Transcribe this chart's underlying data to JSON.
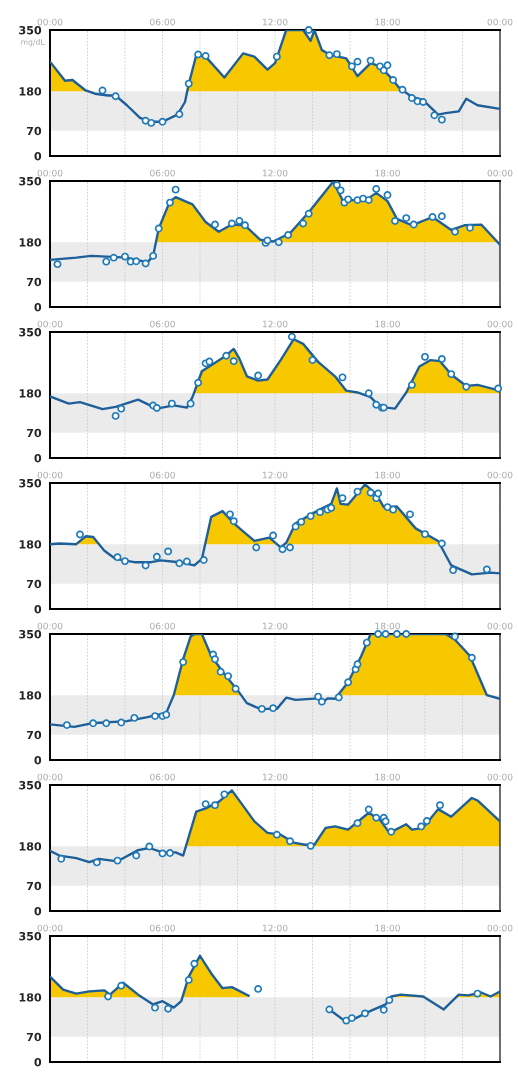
{
  "chart_data": [
    {
      "type": "line",
      "ylabel": "mg/dL",
      "xlim": [
        0,
        24
      ],
      "ylim": [
        0,
        350
      ],
      "yticks": [
        0,
        70,
        180,
        350
      ],
      "grid": "x",
      "xticks": [
        {
          "value": 0,
          "label": "00:00"
        },
        {
          "value": 2,
          "label": null
        },
        {
          "value": 4,
          "label": null
        },
        {
          "value": 6,
          "label": "06:00"
        },
        {
          "value": 8,
          "label": null
        },
        {
          "value": 10,
          "label": null
        },
        {
          "value": 12,
          "label": "12:00"
        },
        {
          "value": 14,
          "label": null
        },
        {
          "value": 16,
          "label": null
        },
        {
          "value": 18,
          "label": "18:00"
        },
        {
          "value": 20,
          "label": null
        },
        {
          "value": 22,
          "label": null
        },
        {
          "value": 24,
          "label": "00:00"
        }
      ],
      "bands": [
        {
          "axis": "y",
          "from": 70,
          "to": 180,
          "color": "#ebebeb"
        }
      ],
      "series": [
        {
          "type": "area",
          "color": "#f7c800",
          "x": [
            0,
            0.8,
            1.2,
            1.9,
            2.0,
            5,
            7.3,
            7.4,
            7.8,
            8.3,
            9.3,
            10.3,
            10.9,
            11.6,
            12.0,
            12.6,
            13.5,
            13.9,
            14.1,
            14.5,
            15.0,
            15.8,
            16.4,
            17.1,
            17.6,
            18.1,
            18.6,
            18.9
          ],
          "values": [
            262,
            209,
            211,
            182,
            180,
            null,
            180,
            200,
            280,
            276,
            218,
            285,
            276,
            240,
            258,
            350,
            350,
            320,
            350,
            294,
            280,
            271,
            222,
            258,
            249,
            222,
            191,
            180
          ]
        },
        {
          "color": "#1f5f99",
          "marker": "none",
          "line_style": "solid",
          "x": [
            0,
            0.8,
            1.2,
            1.9,
            2.4,
            3.1,
            3.5,
            4.1,
            4.8,
            5.4,
            6.0,
            6.8,
            7.2,
            7.4,
            7.8,
            8.3,
            9.3,
            10.3,
            10.9,
            11.6,
            12.0,
            12.6,
            13.5,
            13.9,
            14.1,
            14.5,
            15.0,
            15.8,
            16.4,
            17.1,
            17.6,
            18.1,
            18.6,
            19.3,
            19.9,
            20.7,
            21.1,
            21.8,
            22.2,
            22.8,
            24
          ],
          "values": [
            262,
            209,
            211,
            182,
            173,
            168,
            168,
            141,
            106,
            95,
            95,
            115,
            150,
            200,
            280,
            276,
            218,
            285,
            276,
            240,
            258,
            350,
            350,
            320,
            350,
            294,
            280,
            271,
            222,
            258,
            249,
            222,
            191,
            164,
            155,
            115,
            119,
            124,
            159,
            141,
            131
          ]
        },
        {
          "type": "scatter",
          "color": "#1f7ab8",
          "marker": "circle",
          "x": [
            2.8,
            3.5,
            5.1,
            5.4,
            6.0,
            6.9,
            7.4,
            7.9,
            8.3,
            12.1,
            13.8,
            14.9,
            15.3,
            16.1,
            16.4,
            17.1,
            17.6,
            17.8,
            18.0,
            18.3,
            18.8,
            19.3,
            19.6,
            19.9,
            20.5,
            20.9
          ],
          "values": [
            182,
            166,
            98,
            92,
            95,
            116,
            201,
            282,
            278,
            276,
            350,
            280,
            283,
            249,
            262,
            265,
            249,
            238,
            252,
            211,
            184,
            161,
            152,
            150,
            113,
            101
          ]
        }
      ]
    },
    {
      "type": "line",
      "xlim": [
        0,
        24
      ],
      "ylim": [
        0,
        350
      ],
      "yticks": [
        0,
        70,
        180,
        350
      ],
      "grid": "x",
      "xticks": [
        {
          "value": 0,
          "label": "00:00"
        },
        {
          "value": 2,
          "label": null
        },
        {
          "value": 4,
          "label": null
        },
        {
          "value": 6,
          "label": "06:00"
        },
        {
          "value": 8,
          "label": null
        },
        {
          "value": 10,
          "label": null
        },
        {
          "value": 12,
          "label": "12:00"
        },
        {
          "value": 14,
          "label": null
        },
        {
          "value": 16,
          "label": null
        },
        {
          "value": 18,
          "label": "18:00"
        },
        {
          "value": 20,
          "label": null
        },
        {
          "value": 22,
          "label": null
        },
        {
          "value": 24,
          "label": "00:00"
        }
      ],
      "bands": [
        {
          "axis": "y",
          "from": 70,
          "to": 180,
          "color": "#ebebeb"
        }
      ],
      "series": [
        {
          "type": "area",
          "color": "#f7c800",
          "x": [
            5.7,
            5.8,
            6.4,
            6.7,
            7.6,
            8.3,
            9.0,
            9.7,
            10.4,
            11.2,
            11.9,
            12.8,
            13.8,
            15.1,
            15.6,
            16.1,
            16.9,
            17.4,
            18.0,
            18.5,
            19.3,
            20.4,
            21.4,
            22.1,
            23.0,
            23.9
          ],
          "values": [
            180,
            218,
            294,
            305,
            285,
            236,
            209,
            229,
            227,
            187,
            182,
            205,
            263,
            348,
            297,
            297,
            299,
            317,
            294,
            245,
            227,
            250,
            214,
            227,
            229,
            180
          ]
        },
        {
          "color": "#1f5f99",
          "marker": "none",
          "line_style": "solid",
          "x": [
            0,
            1.4,
            2.2,
            4.1,
            5.2,
            5.5,
            5.8,
            6.4,
            6.7,
            7.6,
            8.3,
            9.0,
            9.7,
            10.4,
            11.2,
            11.9,
            12.8,
            13.8,
            15.1,
            15.6,
            16.1,
            16.9,
            17.4,
            18.0,
            18.5,
            19.3,
            20.4,
            21.4,
            22.1,
            23.0,
            24
          ],
          "values": [
            131,
            137,
            142,
            137,
            124,
            142,
            218,
            294,
            305,
            285,
            236,
            209,
            229,
            227,
            187,
            182,
            205,
            263,
            348,
            297,
            297,
            299,
            317,
            294,
            245,
            227,
            250,
            214,
            227,
            229,
            173
          ]
        },
        {
          "type": "scatter",
          "color": "#1f7ab8",
          "marker": "circle",
          "x": [
            0.4,
            3.0,
            3.4,
            4.0,
            4.3,
            4.6,
            5.1,
            5.5,
            5.8,
            6.4,
            6.7,
            8.8,
            9.7,
            10.1,
            10.4,
            11.5,
            11.6,
            12.2,
            12.7,
            13.5,
            13.8,
            15.3,
            15.5,
            15.7,
            15.9,
            16.4,
            16.7,
            17.0,
            17.4,
            18.0,
            18.4,
            19.0,
            19.4,
            20.4,
            20.9,
            21.6,
            22.4
          ],
          "values": [
            119,
            126,
            137,
            140,
            126,
            127,
            121,
            142,
            218,
            290,
            326,
            229,
            232,
            239,
            227,
            178,
            185,
            180,
            200,
            232,
            259,
            339,
            324,
            290,
            299,
            297,
            301,
            297,
            328,
            311,
            239,
            247,
            229,
            250,
            252,
            209,
            220
          ]
        }
      ]
    },
    {
      "type": "line",
      "xlim": [
        0,
        24
      ],
      "ylim": [
        0,
        350
      ],
      "yticks": [
        0,
        70,
        180,
        350
      ],
      "grid": "x",
      "xticks": [
        {
          "value": 0,
          "label": "00:00"
        },
        {
          "value": 2,
          "label": null
        },
        {
          "value": 4,
          "label": null
        },
        {
          "value": 6,
          "label": "06:00"
        },
        {
          "value": 8,
          "label": null
        },
        {
          "value": 10,
          "label": null
        },
        {
          "value": 12,
          "label": "12:00"
        },
        {
          "value": 14,
          "label": null
        },
        {
          "value": 16,
          "label": null
        },
        {
          "value": 18,
          "label": "18:00"
        },
        {
          "value": 20,
          "label": null
        },
        {
          "value": 22,
          "label": null
        },
        {
          "value": 24,
          "label": "00:00"
        }
      ],
      "bands": [
        {
          "axis": "y",
          "from": 70,
          "to": 180,
          "color": "#ebebeb"
        }
      ],
      "series": [
        {
          "type": "area",
          "color": "#f7c800",
          "x": [
            7.7,
            8.1,
            9.3,
            9.8,
            10.1,
            10.5,
            11.1,
            11.6,
            12.3,
            13.0,
            13.5,
            14.3,
            15.2,
            15.8,
            16.4,
            16.5,
            17.5,
            18.9,
            19.0,
            19.7,
            20.3,
            20.8,
            21.4,
            22.2,
            22.8,
            24
          ],
          "values": [
            180,
            241,
            281,
            303,
            276,
            227,
            215,
            218,
            272,
            330,
            317,
            267,
            227,
            187,
            182,
            180,
            null,
            180,
            182,
            254,
            272,
            269,
            232,
            200,
            203,
            187
          ]
        },
        {
          "color": "#1f5f99",
          "marker": "none",
          "line_style": "solid",
          "x": [
            0,
            1.0,
            1.6,
            2.8,
            3.5,
            4.7,
            5.7,
            6.6,
            7.3,
            7.6,
            8.1,
            9.3,
            9.8,
            10.1,
            10.5,
            11.1,
            11.6,
            12.3,
            13.0,
            13.5,
            14.3,
            15.2,
            15.8,
            16.4,
            17.1,
            17.6,
            18.4,
            19.0,
            19.7,
            20.3,
            20.8,
            21.4,
            22.2,
            22.8,
            24
          ],
          "values": [
            171,
            151,
            155,
            136,
            142,
            162,
            137,
            146,
            140,
            169,
            241,
            281,
            303,
            276,
            227,
            215,
            218,
            272,
            330,
            317,
            267,
            227,
            187,
            182,
            169,
            142,
            137,
            182,
            254,
            272,
            269,
            232,
            200,
            203,
            187
          ]
        },
        {
          "type": "scatter",
          "color": "#1f7ab8",
          "marker": "circle",
          "x": [
            3.5,
            3.8,
            5.5,
            5.7,
            6.5,
            7.5,
            7.9,
            8.3,
            8.5,
            9.4,
            9.8,
            11.1,
            12.9,
            14.0,
            15.6,
            17.0,
            17.4,
            17.7,
            17.8,
            19.3,
            20.0,
            20.9,
            21.4,
            22.2,
            23.9
          ],
          "values": [
            117,
            137,
            146,
            139,
            151,
            151,
            209,
            263,
            268,
            284,
            269,
            229,
            337,
            272,
            224,
            180,
            148,
            140,
            140,
            203,
            281,
            275,
            233,
            198,
            193
          ]
        }
      ]
    },
    {
      "type": "line",
      "xlim": [
        0,
        24
      ],
      "ylim": [
        0,
        350
      ],
      "yticks": [
        0,
        70,
        180,
        350
      ],
      "grid": "x",
      "xticks": [
        {
          "value": 0,
          "label": "00:00"
        },
        {
          "value": 2,
          "label": null
        },
        {
          "value": 4,
          "label": null
        },
        {
          "value": 6,
          "label": "06:00"
        },
        {
          "value": 8,
          "label": null
        },
        {
          "value": 10,
          "label": null
        },
        {
          "value": 12,
          "label": "12:00"
        },
        {
          "value": 14,
          "label": null
        },
        {
          "value": 16,
          "label": null
        },
        {
          "value": 18,
          "label": "18:00"
        },
        {
          "value": 20,
          "label": null
        },
        {
          "value": 22,
          "label": null
        },
        {
          "value": 24,
          "label": "00:00"
        }
      ],
      "bands": [
        {
          "axis": "y",
          "from": 70,
          "to": 180,
          "color": "#ebebeb"
        }
      ],
      "series": [
        {
          "type": "area",
          "color": "#f7c800",
          "x": [
            0,
            0.5,
            1.4,
            1.9,
            2.3,
            2.6,
            5,
            8.3,
            8.6,
            9.2,
            9.8,
            10.9,
            11.7,
            12.1,
            12.3,
            12.5,
            12.6,
            13.1,
            14.3,
            15.0,
            15.3,
            15.5,
            15.9,
            16.8,
            17.4,
            17.8,
            18.5,
            19.5,
            20.7,
            20.8
          ],
          "values": [
            180,
            182,
            180,
            202,
            200,
            180,
            null,
            180,
            256,
            272,
            238,
            189,
            198,
            180,
            null,
            180,
            184,
            238,
            274,
            292,
            335,
            292,
            290,
            346,
            319,
            283,
            285,
            224,
            189,
            180
          ]
        },
        {
          "color": "#1f5f99",
          "marker": "none",
          "line_style": "solid",
          "x": [
            0,
            0.5,
            1.4,
            1.9,
            2.3,
            2.9,
            3.5,
            4.5,
            5.4,
            5.9,
            6.9,
            7.7,
            8.1,
            8.6,
            9.2,
            9.8,
            10.9,
            11.7,
            12.3,
            12.6,
            13.1,
            14.3,
            15.0,
            15.3,
            15.5,
            15.9,
            16.8,
            17.4,
            17.8,
            18.5,
            19.5,
            20.7,
            21.4,
            22.5,
            23.5,
            24
          ],
          "values": [
            180,
            182,
            180,
            202,
            200,
            162,
            139,
            130,
            130,
            135,
            130,
            121,
            139,
            256,
            272,
            238,
            189,
            198,
            171,
            184,
            238,
            274,
            292,
            335,
            292,
            290,
            346,
            319,
            283,
            285,
            224,
            189,
            121,
            96,
            101,
            99
          ]
        },
        {
          "type": "scatter",
          "color": "#1f7ab8",
          "marker": "circle",
          "x": [
            1.6,
            3.6,
            4.0,
            5.1,
            5.7,
            6.3,
            6.9,
            7.3,
            8.2,
            9.6,
            9.8,
            11.0,
            11.9,
            12.4,
            12.8,
            13.1,
            13.4,
            13.9,
            14.4,
            14.8,
            15.0,
            15.6,
            16.4,
            17.1,
            17.4,
            17.5,
            18.0,
            18.3,
            19.2,
            20.0,
            20.9,
            21.5,
            23.3
          ],
          "values": [
            207,
            144,
            133,
            121,
            145,
            160,
            127,
            132,
            136,
            263,
            244,
            171,
            204,
            166,
            171,
            229,
            242,
            258,
            269,
            276,
            281,
            308,
            326,
            323,
            308,
            321,
            283,
            276,
            263,
            208,
            182,
            108,
            110
          ]
        }
      ]
    },
    {
      "type": "line",
      "xlim": [
        0,
        24
      ],
      "ylim": [
        0,
        350
      ],
      "yticks": [
        0,
        70,
        180,
        350
      ],
      "grid": "x",
      "xticks": [
        {
          "value": 0,
          "label": "00:00"
        },
        {
          "value": 2,
          "label": null
        },
        {
          "value": 4,
          "label": null
        },
        {
          "value": 6,
          "label": "06:00"
        },
        {
          "value": 8,
          "label": null
        },
        {
          "value": 10,
          "label": null
        },
        {
          "value": 12,
          "label": "12:00"
        },
        {
          "value": 14,
          "label": null
        },
        {
          "value": 16,
          "label": null
        },
        {
          "value": 18,
          "label": "18:00"
        },
        {
          "value": 20,
          "label": null
        },
        {
          "value": 22,
          "label": null
        },
        {
          "value": 24,
          "label": "00:00"
        }
      ],
      "bands": [
        {
          "axis": "y",
          "from": 70,
          "to": 180,
          "color": "#ebebeb"
        }
      ],
      "series": [
        {
          "type": "area",
          "color": "#f7c800",
          "x": [
            6.6,
            7.1,
            7.5,
            7.7,
            8.1,
            8.6,
            9.3,
            10.0,
            10.2,
            13,
            15.4,
            15.9,
            16.6,
            17.1,
            21.1,
            21.6,
            22.4,
            23.3
          ],
          "values": [
            180,
            280,
            343,
            350,
            350,
            289,
            239,
            194,
            180,
            null,
            180,
            216,
            289,
            350,
            350,
            334,
            289,
            180
          ]
        },
        {
          "color": "#1f5f99",
          "marker": "none",
          "line_style": "solid",
          "x": [
            0,
            1.3,
            2.2,
            4.1,
            5.2,
            6.2,
            6.6,
            7.1,
            7.5,
            7.7,
            8.1,
            8.6,
            9.3,
            10.0,
            10.5,
            11.2,
            12.1,
            12.6,
            13.1,
            14.3,
            14.5,
            14.8,
            15.2,
            15.9,
            16.6,
            17.1,
            21.1,
            21.6,
            22.4,
            23.3,
            24
          ],
          "values": [
            99,
            92,
            102,
            108,
            119,
            131,
            180,
            280,
            343,
            350,
            350,
            289,
            239,
            194,
            158,
            142,
            142,
            173,
            167,
            171,
            158,
            171,
            170,
            216,
            289,
            350,
            350,
            334,
            289,
            180,
            170
          ]
        },
        {
          "type": "scatter",
          "color": "#1f7ab8",
          "marker": "circle",
          "x": [
            0.9,
            2.3,
            3.0,
            3.8,
            4.5,
            5.6,
            6.0,
            6.2,
            7.1,
            8.7,
            8.8,
            9.1,
            9.5,
            9.9,
            11.3,
            11.9,
            14.3,
            14.5,
            15.4,
            15.9,
            16.3,
            16.4,
            16.9,
            17.5,
            17.9,
            18.5,
            19.0,
            21.6,
            22.5
          ],
          "values": [
            97,
            102,
            102,
            104,
            117,
            122,
            122,
            126,
            272,
            293,
            280,
            245,
            233,
            198,
            142,
            144,
            176,
            162,
            174,
            216,
            252,
            266,
            326,
            350,
            350,
            350,
            350,
            343,
            284
          ]
        }
      ]
    },
    {
      "type": "line",
      "xlim": [
        0,
        24
      ],
      "ylim": [
        0,
        350
      ],
      "yticks": [
        0,
        70,
        180,
        350
      ],
      "grid": "x",
      "xticks": [
        {
          "value": 0,
          "label": "00:00"
        },
        {
          "value": 2,
          "label": null
        },
        {
          "value": 4,
          "label": null
        },
        {
          "value": 6,
          "label": "06:00"
        },
        {
          "value": 8,
          "label": null
        },
        {
          "value": 10,
          "label": null
        },
        {
          "value": 12,
          "label": "12:00"
        },
        {
          "value": 14,
          "label": null
        },
        {
          "value": 16,
          "label": null
        },
        {
          "value": 18,
          "label": "18:00"
        },
        {
          "value": 20,
          "label": null
        },
        {
          "value": 22,
          "label": null
        },
        {
          "value": 24,
          "label": "00:00"
        }
      ],
      "bands": [
        {
          "axis": "y",
          "from": 70,
          "to": 180,
          "color": "#ebebeb"
        }
      ],
      "series": [
        {
          "type": "area",
          "color": "#f7c800",
          "x": [
            7.3,
            7.8,
            8.3,
            9.0,
            9.7,
            10.4,
            10.9,
            11.6,
            12.3,
            13.0,
            13.6,
            14.1,
            14.7,
            15.2,
            15.9,
            17.0,
            17.6,
            18.1,
            19.0,
            19.3,
            19.9,
            20.7,
            21.4,
            22.5,
            22.8,
            24
          ],
          "values": [
            180,
            276,
            285,
            303,
            335,
            285,
            249,
            217,
            212,
            190,
            184,
            184,
            231,
            235,
            226,
            273,
            253,
            217,
            241,
            226,
            231,
            283,
            262,
            314,
            307,
            249
          ]
        },
        {
          "color": "#1f5f99",
          "marker": "none",
          "line_style": "solid",
          "x": [
            0,
            0.5,
            1.4,
            2.1,
            2.6,
            3.6,
            4.7,
            5.3,
            6.0,
            6.7,
            7.1,
            7.8,
            8.3,
            9.0,
            9.7,
            10.4,
            10.9,
            11.6,
            12.3,
            13.0,
            13.6,
            14.1,
            14.7,
            15.2,
            15.9,
            17.0,
            17.6,
            18.1,
            19.0,
            19.3,
            19.9,
            20.7,
            21.4,
            22.5,
            22.8,
            24
          ],
          "values": [
            167,
            154,
            147,
            136,
            145,
            138,
            169,
            175,
            163,
            163,
            154,
            276,
            285,
            303,
            335,
            285,
            249,
            217,
            212,
            190,
            184,
            184,
            231,
            235,
            226,
            273,
            253,
            217,
            241,
            226,
            231,
            283,
            262,
            314,
            307,
            249
          ]
        },
        {
          "type": "scatter",
          "color": "#1f7ab8",
          "marker": "circle",
          "x": [
            0.6,
            2.5,
            3.6,
            4.6,
            5.3,
            6.0,
            6.4,
            8.3,
            8.8,
            9.3,
            12.1,
            12.8,
            13.9,
            16.4,
            17.0,
            17.4,
            17.8,
            17.9,
            18.2,
            19.8,
            20.1,
            20.8
          ],
          "values": [
            145,
            135,
            140,
            154,
            179,
            160,
            161,
            297,
            294,
            324,
            212,
            194,
            181,
            244,
            282,
            259,
            259,
            249,
            220,
            235,
            250,
            294
          ]
        }
      ]
    },
    {
      "type": "line",
      "xlim": [
        0,
        24
      ],
      "ylim": [
        0,
        350
      ],
      "yticks": [
        0,
        70,
        180,
        350
      ],
      "grid": "x",
      "xticks": [
        {
          "value": 0,
          "label": "00:00"
        },
        {
          "value": 2,
          "label": null
        },
        {
          "value": 4,
          "label": null
        },
        {
          "value": 6,
          "label": "06:00"
        },
        {
          "value": 8,
          "label": null
        },
        {
          "value": 10,
          "label": null
        },
        {
          "value": 12,
          "label": "12:00"
        },
        {
          "value": 14,
          "label": null
        },
        {
          "value": 16,
          "label": null
        },
        {
          "value": 18,
          "label": "18:00"
        },
        {
          "value": 20,
          "label": null
        },
        {
          "value": 22,
          "label": null
        },
        {
          "value": 24,
          "label": "00:00"
        }
      ],
      "bands": [
        {
          "axis": "y",
          "from": 70,
          "to": 180,
          "color": "#ebebeb"
        }
      ],
      "series": [
        {
          "type": "area",
          "color": "#f7c800",
          "x": [
            0,
            0.7,
            1.4,
            2.1,
            2.9,
            3.2,
            3.9,
            4.7,
            4.9,
            6,
            7.1,
            7.4,
            8.0,
            8.6,
            9.2,
            9.7,
            10.6,
            12,
            18.1,
            18.2,
            18.7,
            19.9,
            20.0,
            21,
            21.7,
            21.8,
            22.3,
            23.0,
            23.5,
            24
          ],
          "values": [
            237,
            201,
            190,
            196,
            199,
            187,
            220,
            187,
            180,
            null,
            180,
            237,
            295,
            246,
            205,
            208,
            184,
            null,
            180,
            182,
            187,
            182,
            180,
            null,
            180,
            187,
            185,
            193,
            182,
            196
          ]
        },
        {
          "color": "#1f5f99",
          "marker": "none",
          "line_style": "solid",
          "x": [
            0,
            0.7,
            1.4,
            2.1,
            2.9,
            3.2,
            3.9,
            4.7,
            5.5,
            6.0,
            6.6,
            7.0,
            7.4,
            8.0,
            8.6,
            9.2,
            9.7,
            10.6,
            12.0,
            14.9,
            15.7,
            16.2,
            17.1,
            17.9,
            18.2,
            18.7,
            19.9,
            21.0,
            21.8,
            22.3,
            23.0,
            23.5,
            24
          ],
          "values": [
            237,
            201,
            190,
            196,
            199,
            187,
            220,
            187,
            160,
            169,
            151,
            169,
            237,
            295,
            246,
            205,
            208,
            184,
            null,
            146,
            115,
            119,
            142,
            160,
            182,
            187,
            182,
            146,
            187,
            185,
            193,
            182,
            196
          ]
        },
        {
          "type": "scatter",
          "color": "#1f7ab8",
          "marker": "circle",
          "x": [
            3.1,
            3.8,
            5.6,
            6.3,
            7.4,
            7.7,
            11.1,
            14.9,
            15.8,
            16.1,
            16.8,
            17.8,
            18.1,
            22.8
          ],
          "values": [
            182,
            212,
            151,
            148,
            228,
            273,
            203,
            146,
            115,
            122,
            135,
            145,
            172,
            190
          ]
        }
      ]
    }
  ]
}
